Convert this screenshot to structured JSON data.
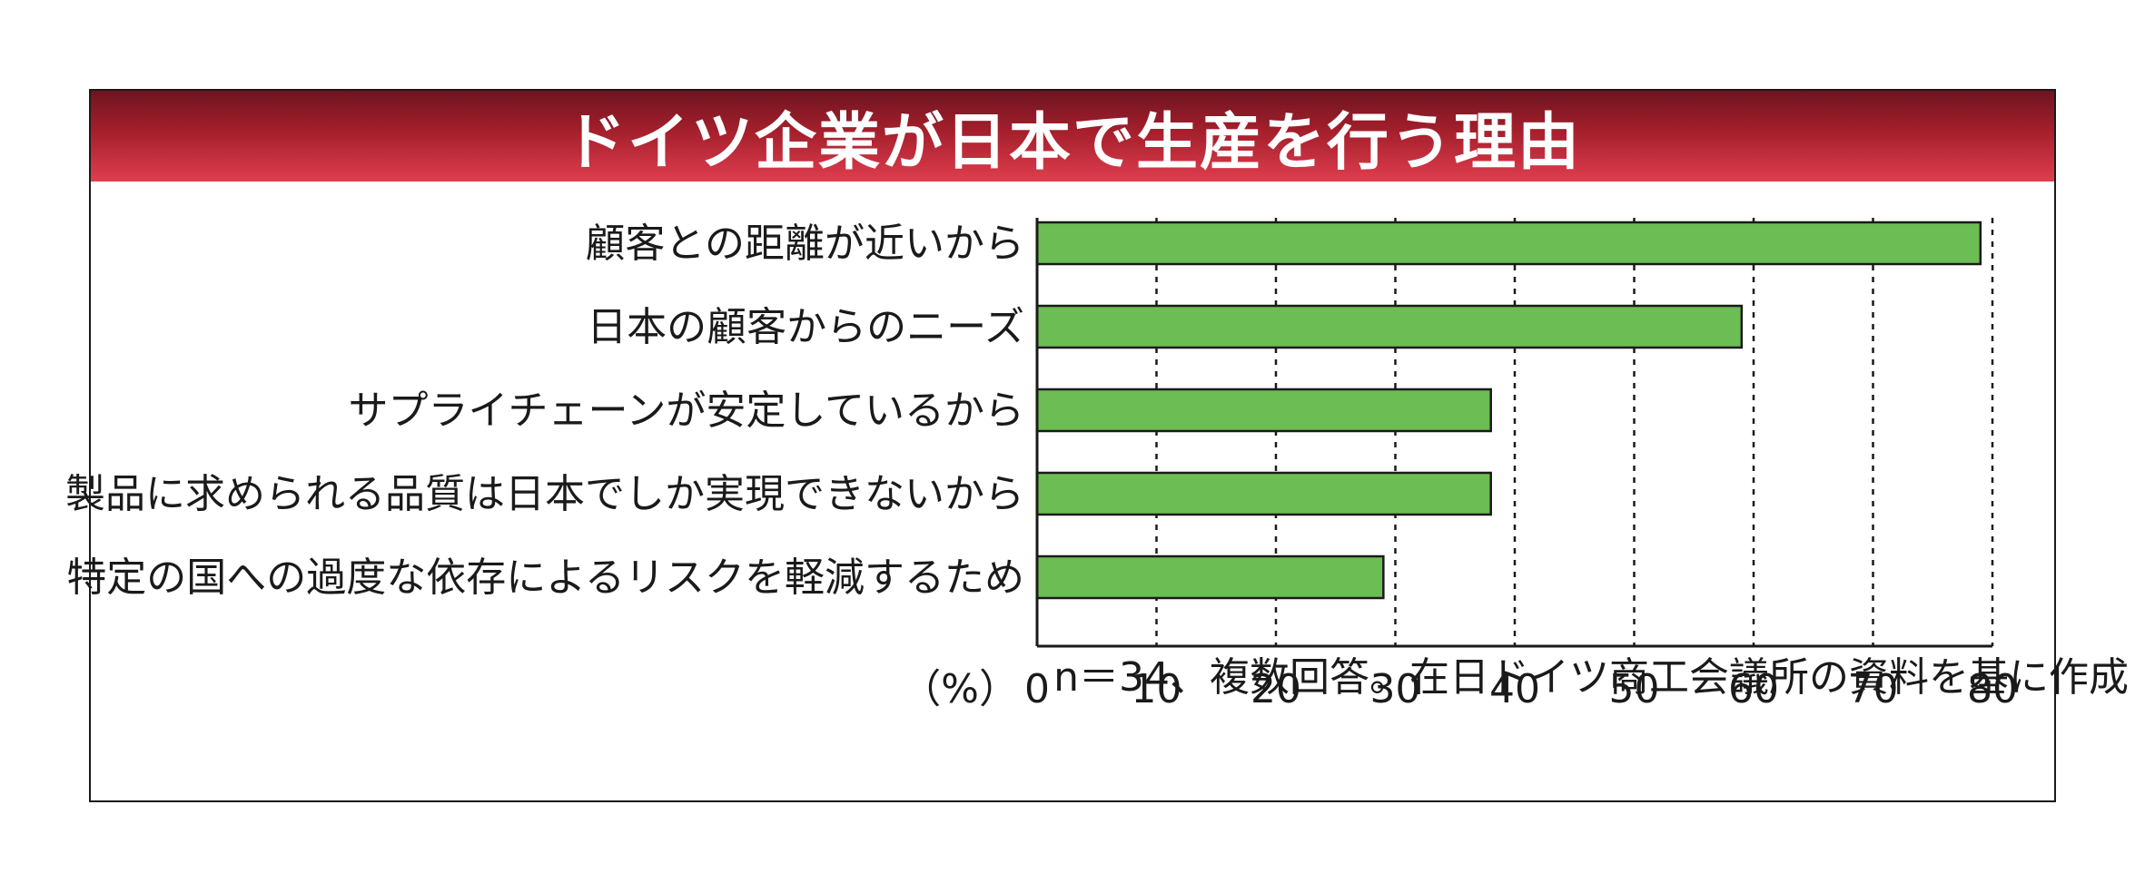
{
  "chart_data": {
    "type": "bar",
    "orientation": "horizontal",
    "title": "ドイツ企業が日本で生産を行う理由",
    "categories": [
      "顧客との距離が近いから",
      "日本の顧客からのニーズ",
      "サプライチェーンが安定しているから",
      "製品に求められる品質は日本でしか実現できないから",
      "特定の国への過度な依存によるリスクを軽減するため"
    ],
    "values": [
      79,
      59,
      38,
      38,
      29
    ],
    "xlim": [
      0,
      80
    ],
    "ticks": [
      "0",
      "10",
      "20",
      "30",
      "40",
      "50",
      "60",
      "70",
      "80"
    ],
    "tick_values": [
      0,
      10,
      20,
      30,
      40,
      50,
      60,
      70,
      80
    ],
    "unit_label": "（%）",
    "grid": "vertical-dotted",
    "colors": {
      "bar": "#6cbd54",
      "bar_edge": "#1a1a1a",
      "title_bar_dark": "#6d1520",
      "title_bar_light": "#e03e4e",
      "title_text": "#ffffff"
    }
  },
  "source_note": "n＝34、複数回答。在日ドイツ商工会議所の資料を基に作成"
}
